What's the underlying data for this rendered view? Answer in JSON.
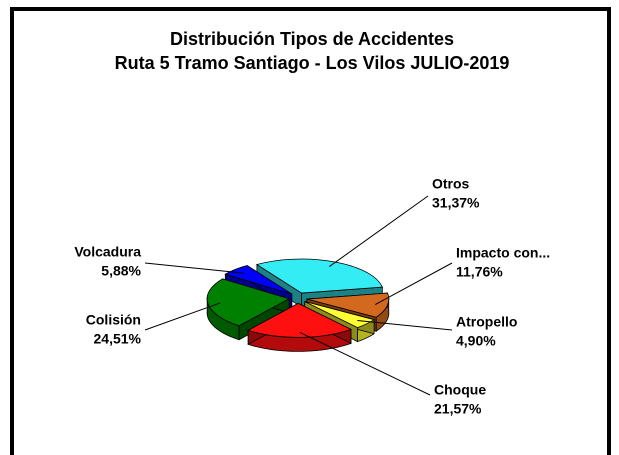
{
  "chart_data": {
    "type": "pie",
    "title": "Distribución Tipos de Accidentes",
    "subtitle": "Ruta 5 Tramo Santiago - Los Vilos JULIO-2019",
    "categories": [
      "Otros",
      "Impacto con...",
      "Atropello",
      "Choque",
      "Colisión",
      "Volcadura"
    ],
    "values": [
      31.37,
      11.76,
      4.9,
      21.57,
      24.51,
      5.88
    ],
    "value_labels": [
      "31,37%",
      "11,76%",
      "4,90%",
      "21,57%",
      "24,51%",
      "5,88%"
    ],
    "colors": [
      "#33ecf4",
      "#d2691e",
      "#ffff33",
      "#ff1010",
      "#008000",
      "#0000ff"
    ]
  }
}
